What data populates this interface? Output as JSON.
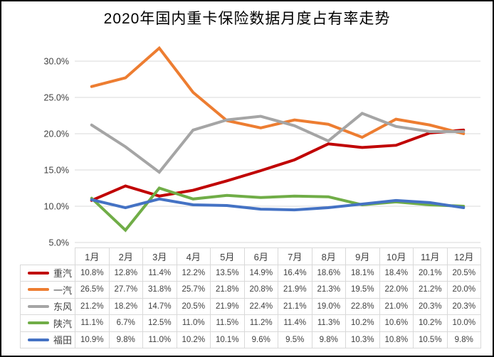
{
  "chart_data": {
    "type": "line",
    "title": "2020年国内重卡保险数据月度占有率走势",
    "categories": [
      "1月",
      "2月",
      "3月",
      "4月",
      "5月",
      "6月",
      "7月",
      "8月",
      "9月",
      "10月",
      "11月",
      "12月"
    ],
    "series": [
      {
        "name": "重汽",
        "color": "#c00000",
        "values": [
          10.8,
          12.8,
          11.4,
          12.2,
          13.5,
          14.9,
          16.4,
          18.6,
          18.1,
          18.4,
          20.1,
          20.5
        ]
      },
      {
        "name": "一汽",
        "color": "#ed7d31",
        "values": [
          26.5,
          27.7,
          31.8,
          25.7,
          21.8,
          20.8,
          21.9,
          21.3,
          19.5,
          22.0,
          21.2,
          20.0
        ]
      },
      {
        "name": "东风",
        "color": "#a5a5a5",
        "values": [
          21.2,
          18.2,
          14.7,
          20.5,
          21.9,
          22.4,
          21.1,
          19.0,
          22.8,
          21.0,
          20.3,
          20.3
        ]
      },
      {
        "name": "陕汽",
        "color": "#70ad47",
        "values": [
          11.1,
          6.7,
          12.5,
          11.0,
          11.5,
          11.2,
          11.4,
          11.3,
          10.2,
          10.6,
          10.2,
          10.0
        ]
      },
      {
        "name": "福田",
        "color": "#4472c4",
        "values": [
          10.9,
          9.8,
          11.0,
          10.2,
          10.1,
          9.6,
          9.5,
          9.8,
          10.3,
          10.8,
          10.5,
          9.8
        ]
      }
    ],
    "y_ticks": [
      {
        "value": 30,
        "label": "30.0%"
      },
      {
        "value": 25,
        "label": "25.0%"
      },
      {
        "value": 20,
        "label": "20.0%"
      },
      {
        "value": 15,
        "label": "15.0%"
      },
      {
        "value": 10,
        "label": "10.0%"
      },
      {
        "value": 5,
        "label": "5.0%"
      }
    ],
    "ylim": [
      5,
      32.5
    ],
    "value_suffix": "%",
    "grid": true,
    "legend_position": "data-table-left",
    "colors": {
      "gridline": "#d9d9d9",
      "table_border": "#d9d9d9",
      "axis_text": "#404040",
      "table_text": "#404040",
      "title_text": "#000000"
    }
  }
}
